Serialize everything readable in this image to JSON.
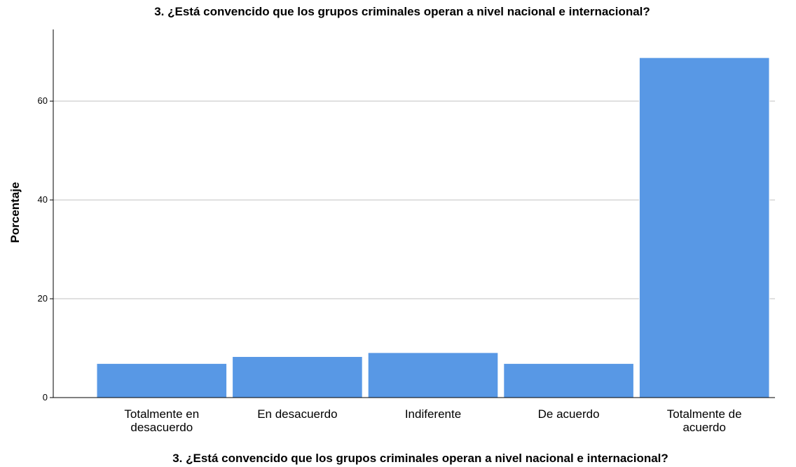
{
  "chart_data": {
    "type": "bar",
    "title": "3.  ¿Está convencido que los grupos criminales operan a nivel nacional e internacional?",
    "xlabel": "3.  ¿Está convencido que los grupos criminales operan a nivel nacional e internacional?",
    "ylabel": "Porcentaje",
    "categories": [
      [
        "Totalmente en",
        "desacuerdo"
      ],
      [
        "En desacuerdo"
      ],
      [
        "Indiferente"
      ],
      [
        "De acuerdo"
      ],
      [
        "Totalmente de",
        "acuerdo"
      ]
    ],
    "values": [
      6.9,
      8.3,
      9.1,
      6.9,
      68.8
    ],
    "ylim": [
      0,
      74.5
    ],
    "yticks": [
      0,
      20,
      40,
      60
    ],
    "grid": true,
    "bar_color": "#5898e5",
    "bar_edge_color": "#ffffff",
    "grid_color": "#c0c0c0",
    "axis_color": "#000000"
  }
}
